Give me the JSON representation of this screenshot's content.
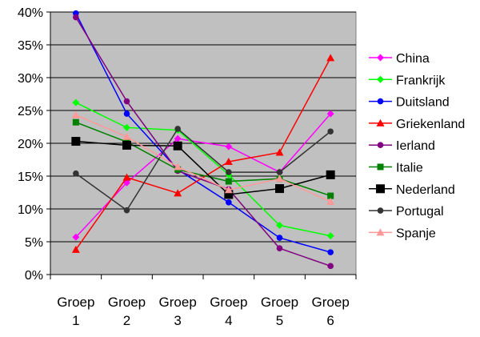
{
  "chart_data": {
    "type": "line",
    "categories": [
      "Groep 1",
      "Groep 2",
      "Groep 3",
      "Groep 4",
      "Groep 5",
      "Groep 6"
    ],
    "category_lines": [
      [
        "Groep",
        "1"
      ],
      [
        "Groep",
        "2"
      ],
      [
        "Groep",
        "3"
      ],
      [
        "Groep",
        "4"
      ],
      [
        "Groep",
        "5"
      ],
      [
        "Groep",
        "6"
      ]
    ],
    "ylim": [
      0,
      40
    ],
    "yticks": [
      0,
      5,
      10,
      15,
      20,
      25,
      30,
      35,
      40
    ],
    "ytick_labels": [
      "0%",
      "5%",
      "10%",
      "15%",
      "20%",
      "25%",
      "30%",
      "35%",
      "40%"
    ],
    "grid": "horizontal",
    "plot_background": "#c0c0c0",
    "legend_position": "right",
    "series": [
      {
        "name": "China",
        "color": "#ff00ff",
        "marker": "diamond",
        "values": [
          5.7,
          14.0,
          20.7,
          19.5,
          15.6,
          24.5
        ]
      },
      {
        "name": "Frankrijk",
        "color": "#00ff00",
        "marker": "diamond",
        "values": [
          26.2,
          22.4,
          22.0,
          15.2,
          7.5,
          5.9
        ]
      },
      {
        "name": "Duitsland",
        "color": "#0000ff",
        "marker": "circle",
        "values": [
          39.8,
          24.5,
          16.0,
          11.0,
          5.6,
          3.4
        ]
      },
      {
        "name": "Griekenland",
        "color": "#ff0000",
        "marker": "triangle",
        "values": [
          3.8,
          14.8,
          12.4,
          17.2,
          18.6,
          33.0
        ]
      },
      {
        "name": "Ierland",
        "color": "#800080",
        "marker": "circle",
        "values": [
          39.2,
          26.4,
          15.8,
          13.0,
          4.0,
          1.3
        ]
      },
      {
        "name": "Italie",
        "color": "#008000",
        "marker": "square",
        "values": [
          23.2,
          20.2,
          16.0,
          14.2,
          14.6,
          12.0
        ]
      },
      {
        "name": "Nederland",
        "color": "#000000",
        "marker": "square-large",
        "values": [
          20.3,
          19.7,
          19.6,
          12.2,
          13.1,
          15.2
        ]
      },
      {
        "name": "Portugal",
        "color": "#333333",
        "marker": "circle",
        "values": [
          15.4,
          9.8,
          22.2,
          15.6,
          15.6,
          21.8
        ]
      },
      {
        "name": "Spanje",
        "color": "#ff9999",
        "marker": "triangle",
        "values": [
          24.3,
          21.0,
          16.4,
          12.9,
          14.6,
          11.1
        ]
      }
    ]
  }
}
